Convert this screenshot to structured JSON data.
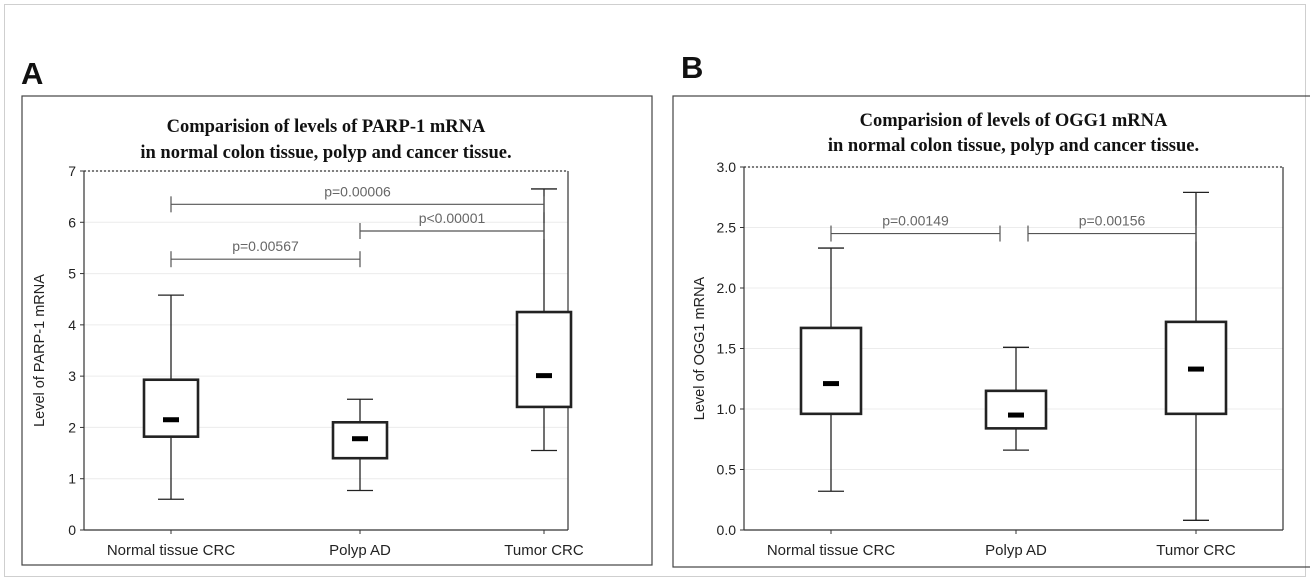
{
  "panels": [
    {
      "letter": "A"
    },
    {
      "letter": "B"
    }
  ],
  "chart_data": [
    {
      "type": "box",
      "title": [
        "Comparision of levels of PARP-1 mRNA",
        "in normal colon tissue, polyp and cancer tissue."
      ],
      "xlabel": "",
      "ylabel": "Level of PARP-1 mRNA",
      "ylim": [
        0,
        7
      ],
      "yticks": [
        0,
        1,
        2,
        3,
        4,
        5,
        6,
        7
      ],
      "ytick_labels": [
        "0",
        "1",
        "2",
        "3",
        "4",
        "5",
        "6",
        "7"
      ],
      "categories": [
        "Normal tissue CRC",
        "Polyp AD",
        "Tumor CRC"
      ],
      "boxes": [
        {
          "min": 0.6,
          "q1": 1.82,
          "median": 2.15,
          "q3": 2.93,
          "max": 4.58
        },
        {
          "min": 0.77,
          "q1": 1.4,
          "median": 1.78,
          "q3": 2.1,
          "max": 2.55
        },
        {
          "min": 1.55,
          "q1": 2.4,
          "median": 3.01,
          "q3": 4.25,
          "max": 6.65
        }
      ],
      "grid": "horizontal",
      "annotations": [
        {
          "label": "p=0.00006",
          "from": 0,
          "to": 2,
          "y": 6.35,
          "label_pos": "mid"
        },
        {
          "label": "p<0.00001",
          "from": 1,
          "to": 2,
          "y": 5.83,
          "label_pos": "mid"
        },
        {
          "label": "p=0.00567",
          "from": 0,
          "to": 1,
          "y": 5.28,
          "label_pos": "mid"
        }
      ]
    },
    {
      "type": "box",
      "title": [
        "Comparision of levels of OGG1 mRNA",
        "in normal colon tissue, polyp and cancer tissue."
      ],
      "xlabel": "",
      "ylabel": "Level of OGG1 mRNA",
      "ylim": [
        0,
        3
      ],
      "yticks": [
        0,
        0.5,
        1,
        1.5,
        2,
        2.5,
        3
      ],
      "ytick_labels": [
        "0.0",
        "0.5",
        "1.0",
        "1.5",
        "2.0",
        "2.5",
        "3.0"
      ],
      "categories": [
        "Normal tissue CRC",
        "Polyp AD",
        "Tumor CRC"
      ],
      "boxes": [
        {
          "min": 0.32,
          "q1": 0.96,
          "median": 1.21,
          "q3": 1.67,
          "max": 2.33
        },
        {
          "min": 0.66,
          "q1": 0.84,
          "median": 0.95,
          "q3": 1.15,
          "max": 1.51
        },
        {
          "min": 0.08,
          "q1": 0.96,
          "median": 1.33,
          "q3": 1.72,
          "max": 2.79
        }
      ],
      "grid": "horizontal",
      "annotations": [
        {
          "label": "p=0.00149",
          "from": 0,
          "to": 1,
          "y": 2.45,
          "label_pos": "mid"
        },
        {
          "label": "p=0.00156",
          "from": 1,
          "to": 2,
          "y": 2.45,
          "label_pos": "mid"
        }
      ]
    }
  ]
}
